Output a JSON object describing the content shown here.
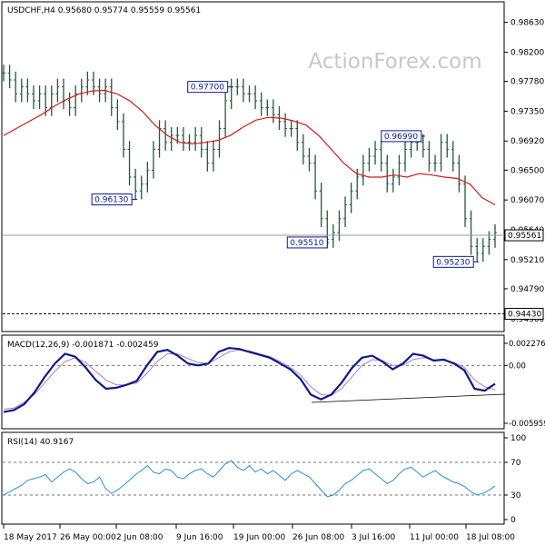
{
  "header": {
    "symbol": "USDCHF,H4",
    "ohlc": "0.95680 0.95774 0.95559 0.95561"
  },
  "watermark": "ActionForex.com",
  "colors": {
    "bars": "#1f5c3a",
    "moving_average": "#d11a1a",
    "macd_main": "#0a1a8c",
    "macd_signal": "#b07cc0",
    "rsi": "#2a8fd4",
    "level_line": "#999999",
    "label_border": "#0a1a8c",
    "label_text": "#0a1a8c"
  },
  "chart_data": [
    {
      "type": "line",
      "panel": "price",
      "ylim": [
        0.942,
        0.989
      ],
      "y_ticks": [
        "0.98630",
        "0.98200",
        "0.97780",
        "0.97350",
        "0.96920",
        "0.96500",
        "0.96070",
        "0.95640",
        "0.95210",
        "0.94790",
        "0.94360"
      ],
      "x_ticks": [
        "18 May 2017",
        "26 May 00:00",
        "2 Jun 08:00",
        "9 Jun 16:00",
        "19 Jun 00:00",
        "26 Jun 08:00",
        "3 Jul 16:00",
        "11 Jul 00:00",
        "18 Jul 08:00"
      ],
      "current_price": "0.95561",
      "support_level": "0.94430",
      "annotations": [
        "0.97700",
        "0.96130",
        "0.95510",
        "0.96990",
        "0.95230"
      ],
      "series": [
        {
          "values": [
            0.979,
            0.978,
            0.976,
            0.977,
            0.976,
            0.975,
            0.976,
            0.974,
            0.976,
            0.977,
            0.975,
            0.974,
            0.976,
            0.977,
            0.978,
            0.977,
            0.976,
            0.977,
            0.974,
            0.972,
            0.968,
            0.964,
            0.962,
            0.963,
            0.965,
            0.968,
            0.971,
            0.969,
            0.97,
            0.97,
            0.969,
            0.969,
            0.97,
            0.968,
            0.966,
            0.968,
            0.971,
            0.975,
            0.977,
            0.977,
            0.976,
            0.976,
            0.975,
            0.974,
            0.974,
            0.973,
            0.972,
            0.971,
            0.971,
            0.969,
            0.967,
            0.966,
            0.962,
            0.958,
            0.955,
            0.956,
            0.958,
            0.96,
            0.962,
            0.964,
            0.966,
            0.967,
            0.968,
            0.966,
            0.963,
            0.964,
            0.966,
            0.968,
            0.969,
            0.969,
            0.968,
            0.966,
            0.966,
            0.969,
            0.968,
            0.966,
            0.963,
            0.958,
            0.954,
            0.953,
            0.954,
            0.955,
            0.956
          ]
        },
        {
          "values": [
            0.97,
            0.971,
            0.972,
            0.973,
            0.9742,
            0.9752,
            0.976,
            0.9764,
            0.9765,
            0.976,
            0.975,
            0.9735,
            0.9715,
            0.97,
            0.969,
            0.9688,
            0.969,
            0.9693,
            0.97,
            0.9712,
            0.9722,
            0.9726,
            0.9725,
            0.9721,
            0.9715,
            0.97,
            0.968,
            0.966,
            0.9645,
            0.964,
            0.964,
            0.9643,
            0.964,
            0.9645,
            0.9643,
            0.964,
            0.9638,
            0.963,
            0.961,
            0.96
          ]
        }
      ]
    },
    {
      "type": "line",
      "panel": "macd",
      "title": "MACD(12,26,9) -0.001871 -0.002459",
      "ylim": [
        -0.005959,
        0.002276
      ],
      "y_ticks": [
        "0.002276",
        "0.00",
        "-0.005959"
      ],
      "series": [
        {
          "values": [
            -0.0048,
            -0.0046,
            -0.004,
            -0.0028,
            -0.0012,
            0.0002,
            0.0012,
            0.0009,
            -0.0002,
            -0.0015,
            -0.0024,
            -0.0023,
            -0.002,
            -0.0016,
            0.0,
            0.0014,
            0.0016,
            0.001,
            0.0002,
            0.0,
            0.0002,
            0.0014,
            0.0018,
            0.0017,
            0.0014,
            0.0011,
            0.0008,
            0.0002,
            -0.0004,
            -0.0014,
            -0.003,
            -0.0035,
            -0.003,
            -0.0018,
            -0.0003,
            0.0008,
            0.001,
            0.0004,
            -0.0004,
            0.0002,
            0.0012,
            0.001,
            0.0005,
            0.0006,
            0.0002,
            -0.0005,
            -0.0024,
            -0.0026,
            -0.0019
          ]
        },
        {
          "values": [
            -0.0045,
            -0.0044,
            -0.0038,
            -0.003,
            -0.0018,
            -0.0006,
            0.0004,
            0.0008,
            0.0003,
            -0.0006,
            -0.0015,
            -0.002,
            -0.002,
            -0.0018,
            -0.0008,
            0.0004,
            0.0012,
            0.0012,
            0.0007,
            0.0003,
            0.0002,
            0.0008,
            0.0014,
            0.0016,
            0.0015,
            0.0012,
            0.0009,
            0.0004,
            -0.0002,
            -0.001,
            -0.0022,
            -0.003,
            -0.0031,
            -0.0024,
            -0.0012,
            0.0,
            0.0006,
            0.0005,
            0.0,
            0.0,
            0.0006,
            0.0008,
            0.0006,
            0.0005,
            0.0003,
            -0.0002,
            -0.0015,
            -0.0022,
            -0.0025
          ]
        }
      ]
    },
    {
      "type": "line",
      "panel": "rsi",
      "title": "RSI(14) 40.9167",
      "ylim": [
        0,
        100
      ],
      "y_ticks": [
        "100",
        "70",
        "30",
        "0"
      ],
      "levels": [
        70,
        30
      ],
      "series": [
        {
          "values": [
            30,
            34,
            38,
            42,
            48,
            50,
            52,
            55,
            46,
            52,
            58,
            62,
            58,
            50,
            44,
            46,
            52,
            38,
            32,
            36,
            42,
            48,
            55,
            60,
            66,
            58,
            56,
            62,
            60,
            52,
            50,
            56,
            60,
            62,
            56,
            52,
            60,
            68,
            72,
            64,
            60,
            66,
            58,
            62,
            56,
            60,
            54,
            48,
            56,
            60,
            56,
            52,
            44,
            36,
            28,
            30,
            36,
            44,
            48,
            54,
            60,
            62,
            56,
            50,
            44,
            48,
            56,
            62,
            64,
            58,
            52,
            56,
            60,
            54,
            50,
            46,
            44,
            40,
            34,
            30,
            32,
            36,
            41
          ]
        }
      ]
    }
  ]
}
